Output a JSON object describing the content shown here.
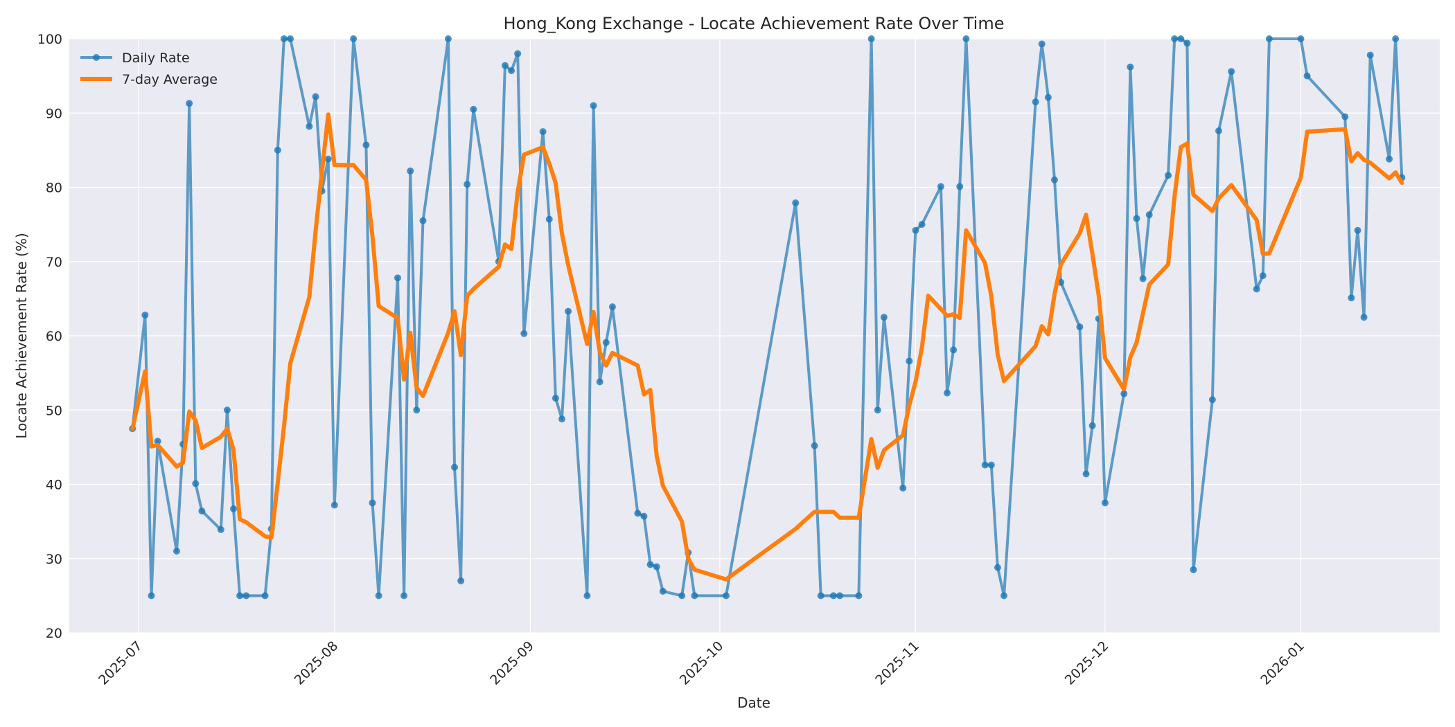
{
  "chart_data": {
    "type": "line",
    "title": "Hong_Kong Exchange - Locate Achievement Rate Over Time",
    "xlabel": "Date",
    "ylabel": "Locate Achievement Rate (%)",
    "ylim": [
      20,
      100
    ],
    "yticks": [
      20,
      30,
      40,
      50,
      60,
      70,
      80,
      90,
      100
    ],
    "xlim": [
      "2025-06-20",
      "2026-01-23"
    ],
    "xticks": [
      "2025-07",
      "2025-08",
      "2025-09",
      "2025-10",
      "2025-11",
      "2025-12",
      "2026-01"
    ],
    "grid": true,
    "legend_position": "upper left",
    "background": "#eaeaf2",
    "series": [
      {
        "name": "Daily Rate",
        "color": "#1f77b4",
        "marker": "circle",
        "points": [
          [
            "2025-06-30",
            47.5
          ],
          [
            "2025-07-02",
            62.8
          ],
          [
            "2025-07-03",
            25.0
          ],
          [
            "2025-07-04",
            45.8
          ],
          [
            "2025-07-07",
            31.0
          ],
          [
            "2025-07-08",
            45.4
          ],
          [
            "2025-07-09",
            91.3
          ],
          [
            "2025-07-10",
            40.1
          ],
          [
            "2025-07-11",
            36.4
          ],
          [
            "2025-07-14",
            33.9
          ],
          [
            "2025-07-15",
            50.0
          ],
          [
            "2025-07-16",
            36.7
          ],
          [
            "2025-07-17",
            25.0
          ],
          [
            "2025-07-18",
            25.0
          ],
          [
            "2025-07-21",
            25.0
          ],
          [
            "2025-07-22",
            34.0
          ],
          [
            "2025-07-23",
            85.0
          ],
          [
            "2025-07-24",
            100.0
          ],
          [
            "2025-07-25",
            100.0
          ],
          [
            "2025-07-28",
            88.2
          ],
          [
            "2025-07-29",
            92.2
          ],
          [
            "2025-07-30",
            79.5
          ],
          [
            "2025-07-31",
            83.8
          ],
          [
            "2025-08-01",
            37.2
          ],
          [
            "2025-08-04",
            100.0
          ],
          [
            "2025-08-06",
            85.7
          ],
          [
            "2025-08-07",
            37.5
          ],
          [
            "2025-08-08",
            25.0
          ],
          [
            "2025-08-11",
            67.8
          ],
          [
            "2025-08-12",
            25.0
          ],
          [
            "2025-08-13",
            82.2
          ],
          [
            "2025-08-14",
            50.0
          ],
          [
            "2025-08-15",
            75.5
          ],
          [
            "2025-08-19",
            100.0
          ],
          [
            "2025-08-20",
            42.3
          ],
          [
            "2025-08-21",
            27.0
          ],
          [
            "2025-08-22",
            80.4
          ],
          [
            "2025-08-23",
            90.5
          ],
          [
            "2025-08-27",
            70.0
          ],
          [
            "2025-08-28",
            96.4
          ],
          [
            "2025-08-29",
            95.7
          ],
          [
            "2025-08-30",
            98.0
          ],
          [
            "2025-08-31",
            60.3
          ],
          [
            "2025-09-03",
            87.5
          ],
          [
            "2025-09-04",
            75.7
          ],
          [
            "2025-09-05",
            51.6
          ],
          [
            "2025-09-06",
            48.8
          ],
          [
            "2025-09-07",
            63.3
          ],
          [
            "2025-09-10",
            25.0
          ],
          [
            "2025-09-11",
            91.0
          ],
          [
            "2025-09-12",
            53.8
          ],
          [
            "2025-09-13",
            59.1
          ],
          [
            "2025-09-14",
            63.9
          ],
          [
            "2025-09-18",
            36.1
          ],
          [
            "2025-09-19",
            35.7
          ],
          [
            "2025-09-20",
            29.2
          ],
          [
            "2025-09-21",
            28.9
          ],
          [
            "2025-09-22",
            25.6
          ],
          [
            "2025-09-25",
            25.0
          ],
          [
            "2025-09-26",
            30.8
          ],
          [
            "2025-09-27",
            25.0
          ],
          [
            "2025-10-02",
            25.0
          ],
          [
            "2025-10-13",
            77.9
          ],
          [
            "2025-10-16",
            45.2
          ],
          [
            "2025-10-17",
            25.0
          ],
          [
            "2025-10-19",
            25.0
          ],
          [
            "2025-10-20",
            25.0
          ],
          [
            "2025-10-23",
            25.0
          ],
          [
            "2025-10-25",
            100.0
          ],
          [
            "2025-10-26",
            50.0
          ],
          [
            "2025-10-27",
            62.5
          ],
          [
            "2025-10-30",
            39.5
          ],
          [
            "2025-10-31",
            56.6
          ],
          [
            "2025-11-01",
            74.2
          ],
          [
            "2025-11-02",
            75.0
          ],
          [
            "2025-11-05",
            80.1
          ],
          [
            "2025-11-06",
            52.3
          ],
          [
            "2025-11-07",
            58.1
          ],
          [
            "2025-11-08",
            80.1
          ],
          [
            "2025-11-09",
            100.0
          ],
          [
            "2025-11-12",
            42.6
          ],
          [
            "2025-11-13",
            42.6
          ],
          [
            "2025-11-14",
            28.8
          ],
          [
            "2025-11-15",
            25.0
          ],
          [
            "2025-11-20",
            91.5
          ],
          [
            "2025-11-21",
            99.3
          ],
          [
            "2025-11-22",
            92.1
          ],
          [
            "2025-11-23",
            81.0
          ],
          [
            "2025-11-24",
            67.2
          ],
          [
            "2025-11-27",
            61.2
          ],
          [
            "2025-11-28",
            41.4
          ],
          [
            "2025-11-29",
            47.9
          ],
          [
            "2025-11-30",
            62.3
          ],
          [
            "2025-12-01",
            37.5
          ],
          [
            "2025-12-04",
            52.2
          ],
          [
            "2025-12-05",
            96.2
          ],
          [
            "2025-12-06",
            75.8
          ],
          [
            "2025-12-07",
            67.7
          ],
          [
            "2025-12-08",
            76.3
          ],
          [
            "2025-12-11",
            81.6
          ],
          [
            "2025-12-12",
            100.0
          ],
          [
            "2025-12-13",
            100.0
          ],
          [
            "2025-12-14",
            99.4
          ],
          [
            "2025-12-15",
            28.5
          ],
          [
            "2025-12-18",
            51.4
          ],
          [
            "2025-12-19",
            87.6
          ],
          [
            "2025-12-21",
            95.6
          ],
          [
            "2025-12-25",
            66.3
          ],
          [
            "2025-12-26",
            68.1
          ],
          [
            "2025-12-27",
            100.0
          ],
          [
            "2026-01-01",
            100.0
          ],
          [
            "2026-01-02",
            95.0
          ],
          [
            "2026-01-08",
            89.5
          ],
          [
            "2026-01-09",
            65.1
          ],
          [
            "2026-01-10",
            74.2
          ],
          [
            "2026-01-11",
            62.5
          ],
          [
            "2026-01-12",
            97.8
          ],
          [
            "2026-01-15",
            83.8
          ],
          [
            "2026-01-16",
            100.0
          ],
          [
            "2026-01-17",
            81.3
          ]
        ]
      },
      {
        "name": "7-day Average",
        "color": "#ff7f0e",
        "marker": "none",
        "points": [
          [
            "2025-06-30",
            47.5
          ],
          [
            "2025-07-02",
            55.2
          ],
          [
            "2025-07-03",
            45.1
          ],
          [
            "2025-07-04",
            45.3
          ],
          [
            "2025-07-07",
            42.4
          ],
          [
            "2025-07-08",
            42.9
          ],
          [
            "2025-07-09",
            49.8
          ],
          [
            "2025-07-10",
            48.6
          ],
          [
            "2025-07-11",
            44.9
          ],
          [
            "2025-07-14",
            46.4
          ],
          [
            "2025-07-15",
            47.5
          ],
          [
            "2025-07-16",
            44.7
          ],
          [
            "2025-07-17",
            35.3
          ],
          [
            "2025-07-18",
            34.9
          ],
          [
            "2025-07-21",
            33.0
          ],
          [
            "2025-07-22",
            32.8
          ],
          [
            "2025-07-23",
            40.2
          ],
          [
            "2025-07-24",
            47.8
          ],
          [
            "2025-07-25",
            56.3
          ],
          [
            "2025-07-28",
            65.2
          ],
          [
            "2025-07-29",
            74.1
          ],
          [
            "2025-07-30",
            82.1
          ],
          [
            "2025-07-31",
            89.8
          ],
          [
            "2025-08-01",
            83.0
          ],
          [
            "2025-08-04",
            83.0
          ],
          [
            "2025-08-06",
            81.0
          ],
          [
            "2025-08-07",
            73.5
          ],
          [
            "2025-08-08",
            64.0
          ],
          [
            "2025-08-11",
            62.4
          ],
          [
            "2025-08-12",
            54.1
          ],
          [
            "2025-08-13",
            60.4
          ],
          [
            "2025-08-14",
            53.0
          ],
          [
            "2025-08-15",
            51.9
          ],
          [
            "2025-08-19",
            60.4
          ],
          [
            "2025-08-20",
            63.3
          ],
          [
            "2025-08-21",
            57.4
          ],
          [
            "2025-08-22",
            65.4
          ],
          [
            "2025-08-23",
            66.3
          ],
          [
            "2025-08-27",
            69.3
          ],
          [
            "2025-08-28",
            72.3
          ],
          [
            "2025-08-29",
            71.7
          ],
          [
            "2025-08-30",
            79.4
          ],
          [
            "2025-08-31",
            84.4
          ],
          [
            "2025-09-03",
            85.4
          ],
          [
            "2025-09-04",
            83.2
          ],
          [
            "2025-09-05",
            80.6
          ],
          [
            "2025-09-06",
            73.8
          ],
          [
            "2025-09-07",
            69.5
          ],
          [
            "2025-09-10",
            58.9
          ],
          [
            "2025-09-11",
            63.2
          ],
          [
            "2025-09-12",
            57.8
          ],
          [
            "2025-09-13",
            56.0
          ],
          [
            "2025-09-14",
            57.7
          ],
          [
            "2025-09-18",
            56.0
          ],
          [
            "2025-09-19",
            52.1
          ],
          [
            "2025-09-20",
            52.7
          ],
          [
            "2025-09-21",
            43.9
          ],
          [
            "2025-09-22",
            39.8
          ],
          [
            "2025-09-25",
            35.0
          ],
          [
            "2025-09-26",
            30.0
          ],
          [
            "2025-09-27",
            28.5
          ],
          [
            "2025-10-02",
            27.2
          ],
          [
            "2025-10-13",
            34.0
          ],
          [
            "2025-10-16",
            36.3
          ],
          [
            "2025-10-17",
            36.3
          ],
          [
            "2025-10-19",
            36.3
          ],
          [
            "2025-10-20",
            35.5
          ],
          [
            "2025-10-23",
            35.5
          ],
          [
            "2025-10-25",
            46.1
          ],
          [
            "2025-10-26",
            42.2
          ],
          [
            "2025-10-27",
            44.6
          ],
          [
            "2025-10-30",
            46.6
          ],
          [
            "2025-10-31",
            50.6
          ],
          [
            "2025-11-01",
            53.8
          ],
          [
            "2025-11-02",
            58.4
          ],
          [
            "2025-11-03",
            65.4
          ],
          [
            "2025-11-06",
            62.7
          ],
          [
            "2025-11-07",
            62.9
          ],
          [
            "2025-11-08",
            62.4
          ],
          [
            "2025-11-09",
            74.2
          ],
          [
            "2025-11-12",
            69.8
          ],
          [
            "2025-11-13",
            65.3
          ],
          [
            "2025-11-14",
            57.5
          ],
          [
            "2025-11-15",
            53.9
          ],
          [
            "2025-11-20",
            58.6
          ],
          [
            "2025-11-21",
            61.3
          ],
          [
            "2025-11-22",
            60.2
          ],
          [
            "2025-11-23",
            65.6
          ],
          [
            "2025-11-24",
            69.6
          ],
          [
            "2025-11-27",
            73.8
          ],
          [
            "2025-11-28",
            76.3
          ],
          [
            "2025-11-29",
            71.0
          ],
          [
            "2025-11-30",
            65.4
          ],
          [
            "2025-12-01",
            57.0
          ],
          [
            "2025-12-04",
            52.8
          ],
          [
            "2025-12-05",
            57.1
          ],
          [
            "2025-12-06",
            59.1
          ],
          [
            "2025-12-07",
            63.0
          ],
          [
            "2025-12-08",
            66.9
          ],
          [
            "2025-12-11",
            69.6
          ],
          [
            "2025-12-12",
            78.8
          ],
          [
            "2025-12-13",
            85.4
          ],
          [
            "2025-12-14",
            85.9
          ],
          [
            "2025-12-15",
            79.0
          ],
          [
            "2025-12-18",
            76.8
          ],
          [
            "2025-12-19",
            78.5
          ],
          [
            "2025-12-21",
            80.3
          ],
          [
            "2025-12-25",
            75.6
          ],
          [
            "2025-12-26",
            71.0
          ],
          [
            "2025-12-27",
            71.1
          ],
          [
            "2026-01-01",
            81.3
          ],
          [
            "2026-01-02",
            87.5
          ],
          [
            "2026-01-08",
            87.8
          ],
          [
            "2026-01-09",
            83.5
          ],
          [
            "2026-01-10",
            84.6
          ],
          [
            "2026-01-11",
            83.7
          ],
          [
            "2026-01-12",
            83.3
          ],
          [
            "2026-01-15",
            81.2
          ],
          [
            "2026-01-16",
            82.0
          ],
          [
            "2026-01-17",
            80.6
          ]
        ]
      }
    ]
  },
  "labels": {
    "title": "Hong_Kong Exchange - Locate Achievement Rate Over Time",
    "xlabel": "Date",
    "ylabel": "Locate Achievement Rate (%)",
    "legend_daily": "Daily Rate",
    "legend_avg": "7-day Average"
  }
}
